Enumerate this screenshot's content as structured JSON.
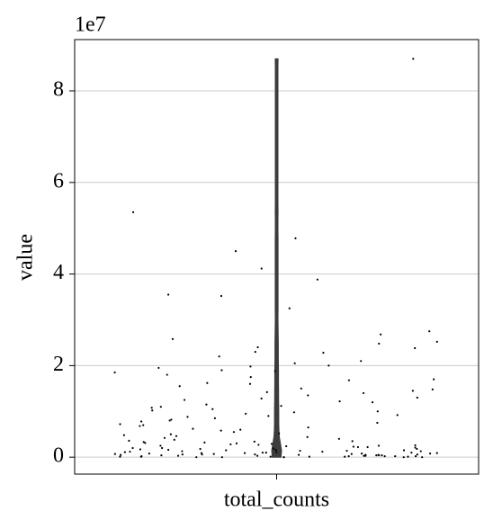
{
  "chart_data": {
    "type": "violin-strip",
    "categories": [
      "total_counts"
    ],
    "ylabel": "value",
    "offset_label": "1e7",
    "ylim": [
      -0.37,
      9.12
    ],
    "yticks": [
      0,
      2,
      4,
      6,
      8
    ],
    "grid": true,
    "color": "#000000",
    "violin_color": "#3c3c3c",
    "values": [
      8.7,
      5.35,
      4.78,
      4.5,
      4.12,
      3.88,
      3.55,
      3.52,
      3.25,
      2.75,
      2.68,
      2.58,
      2.52,
      2.48,
      2.4,
      2.38,
      2.3,
      2.28,
      2.2,
      2.1,
      2.05,
      2.0,
      1.98,
      1.95,
      1.9,
      1.88,
      1.85,
      1.8,
      1.75,
      1.7,
      1.68,
      1.62,
      1.6,
      1.55,
      1.5,
      1.48,
      1.45,
      1.42,
      1.4,
      1.35,
      1.3,
      1.28,
      1.25,
      1.22,
      1.2,
      1.15,
      1.12,
      1.1,
      1.08,
      1.05,
      1.02,
      1.0,
      0.98,
      0.95,
      0.92,
      0.9,
      0.88,
      0.85,
      0.82,
      0.8,
      0.78,
      0.75,
      0.72,
      0.7,
      0.68,
      0.65,
      0.62,
      0.6,
      0.58,
      0.55,
      0.52,
      0.5,
      0.48,
      0.46,
      0.44,
      0.42,
      0.4,
      0.38,
      0.36,
      0.35,
      0.34,
      0.33,
      0.32,
      0.31,
      0.3,
      0.29,
      0.28,
      0.27,
      0.26,
      0.25,
      0.25,
      0.24,
      0.23,
      0.22,
      0.22,
      0.21,
      0.2,
      0.2,
      0.19,
      0.18,
      0.18,
      0.17,
      0.16,
      0.16,
      0.15,
      0.15,
      0.14,
      0.14,
      0.13,
      0.13,
      0.12,
      0.12,
      0.11,
      0.11,
      0.1,
      0.1,
      0.1,
      0.09,
      0.09,
      0.09,
      0.08,
      0.08,
      0.08,
      0.07,
      0.07,
      0.07,
      0.06,
      0.06,
      0.06,
      0.06,
      0.05,
      0.05,
      0.05,
      0.05,
      0.04,
      0.04,
      0.04,
      0.04,
      0.03,
      0.03,
      0.03,
      0.03,
      0.02,
      0.02,
      0.02,
      0.02,
      0.02,
      0.01,
      0.01,
      0.01,
      0.01,
      0.01,
      0.01,
      0.0,
      0.0,
      0.0,
      0.0,
      0.0,
      0.0
    ]
  }
}
